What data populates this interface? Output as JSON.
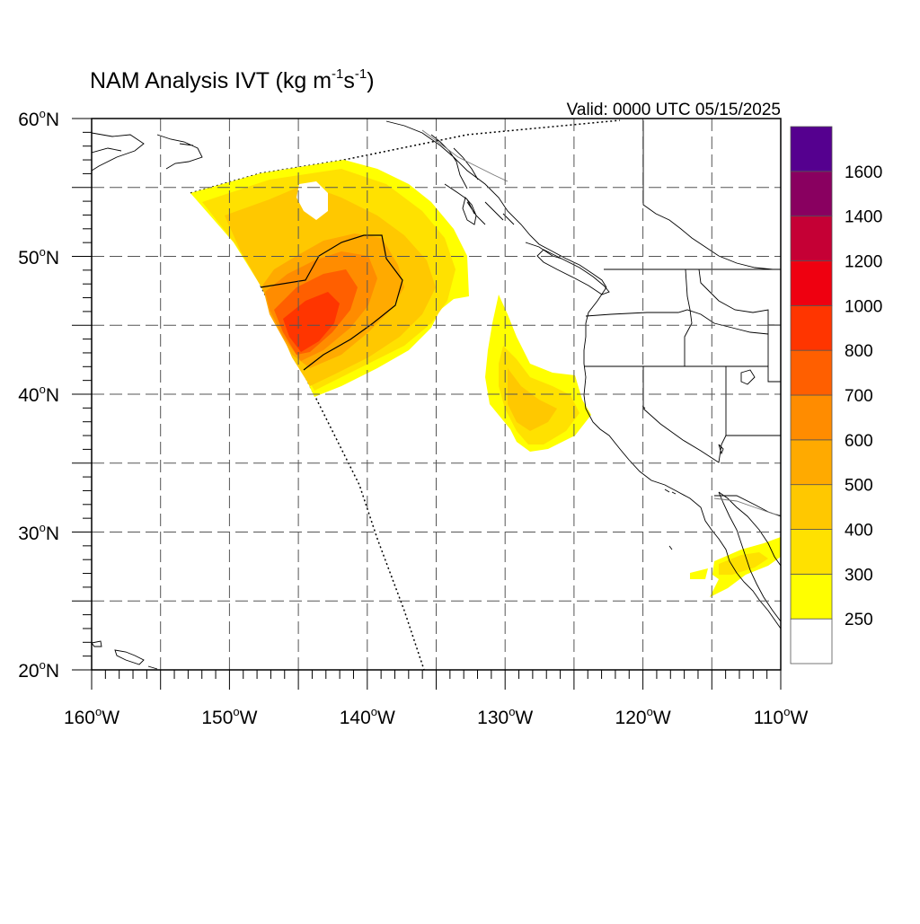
{
  "title": {
    "main": "NAM Analysis IVT (kg m",
    "sup1": "-1",
    "mid": "s",
    "sup2": "-1",
    "close": ")"
  },
  "valid": "Valid: 0000 UTC 05/15/2025",
  "map": {
    "lon_range": [
      -160,
      -110
    ],
    "lat_range": [
      20,
      60
    ],
    "lat_labels": [
      {
        "value": 60,
        "text": "60",
        "suffix": "N"
      },
      {
        "value": 50,
        "text": "50",
        "suffix": "N"
      },
      {
        "value": 40,
        "text": "40",
        "suffix": "N"
      },
      {
        "value": 30,
        "text": "30",
        "suffix": "N"
      },
      {
        "value": 20,
        "text": "20",
        "suffix": "N"
      }
    ],
    "lon_labels": [
      {
        "value": -160,
        "text": "160",
        "suffix": "W"
      },
      {
        "value": -150,
        "text": "150",
        "suffix": "W"
      },
      {
        "value": -140,
        "text": "140",
        "suffix": "W"
      },
      {
        "value": -130,
        "text": "130",
        "suffix": "W"
      },
      {
        "value": -120,
        "text": "120",
        "suffix": "W"
      },
      {
        "value": -110,
        "text": "110",
        "suffix": "W"
      }
    ],
    "gridlines": "dashed",
    "grid_step_deg": 5
  },
  "colorbar": {
    "labels": [
      "1600",
      "1400",
      "1200",
      "1000",
      "800",
      "700",
      "600",
      "500",
      "400",
      "300",
      "250"
    ],
    "colors": [
      "#ffffff",
      "#ffff00",
      "#ffe100",
      "#ffc800",
      "#ffaa00",
      "#ff8c00",
      "#ff5f00",
      "#ff3500",
      "#ef0010",
      "#c50035",
      "#890060",
      "#55008f"
    ]
  },
  "colors": {
    "ivt_250": "#ffff00",
    "ivt_300": "#ffe100",
    "ivt_400": "#ffc800",
    "ivt_500": "#ffaa00",
    "ivt_600": "#ff8c00",
    "ivt_700": "#ff5f00",
    "ivt_800": "#ff3500"
  }
}
